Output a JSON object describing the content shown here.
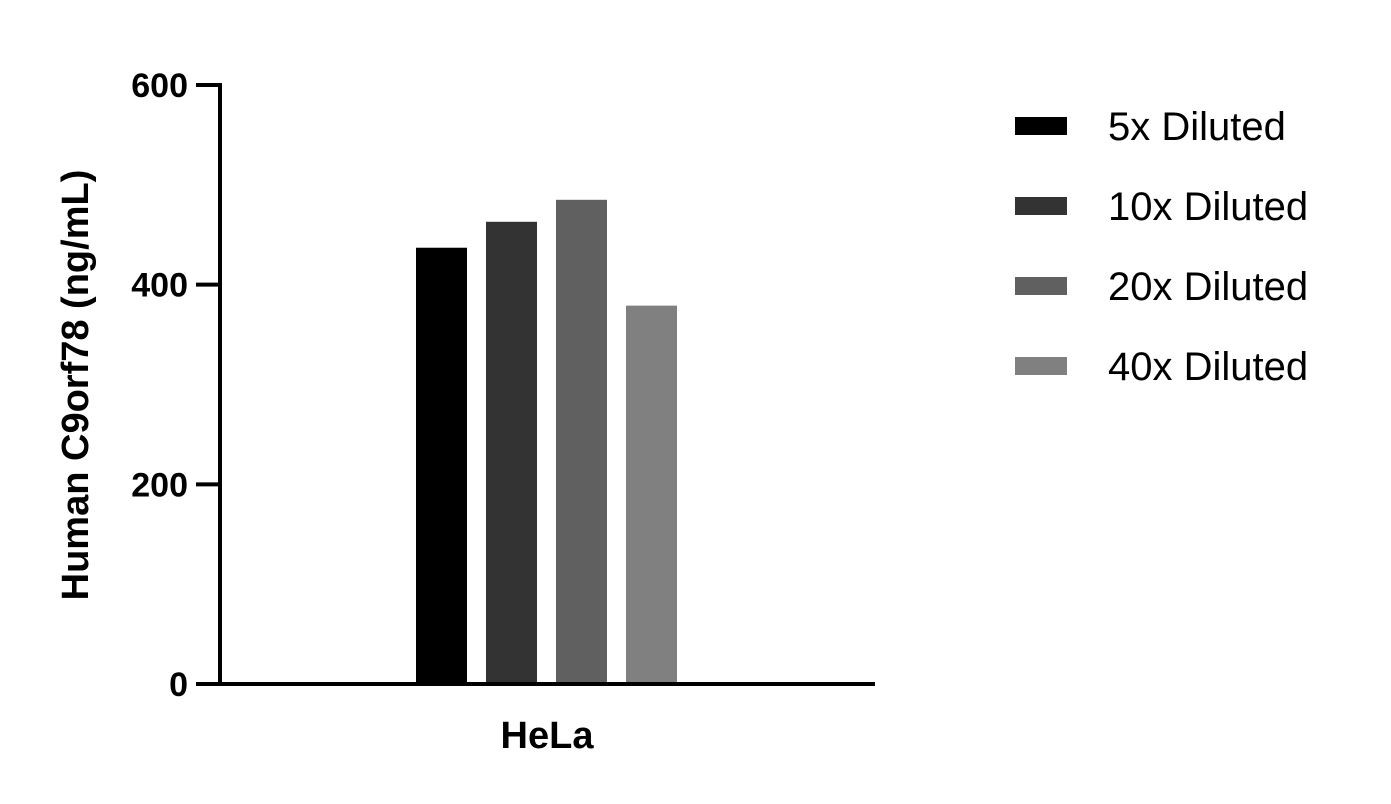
{
  "chart_data": {
    "type": "bar",
    "title": "",
    "xlabel": "",
    "ylabel": "Human C9orf78 (ng/mL)",
    "ylim": [
      0,
      600
    ],
    "yticks": [
      0,
      200,
      400,
      600
    ],
    "categories": [
      "HeLa"
    ],
    "grid": false,
    "legend_position": "right",
    "series": [
      {
        "name": "5x Diluted",
        "values": [
          437
        ],
        "color": "#000000"
      },
      {
        "name": "10x Diluted",
        "values": [
          463
        ],
        "color": "#333333"
      },
      {
        "name": "20x Diluted",
        "values": [
          485
        ],
        "color": "#606060"
      },
      {
        "name": "40x Diluted",
        "values": [
          379
        ],
        "color": "#808080"
      }
    ]
  }
}
